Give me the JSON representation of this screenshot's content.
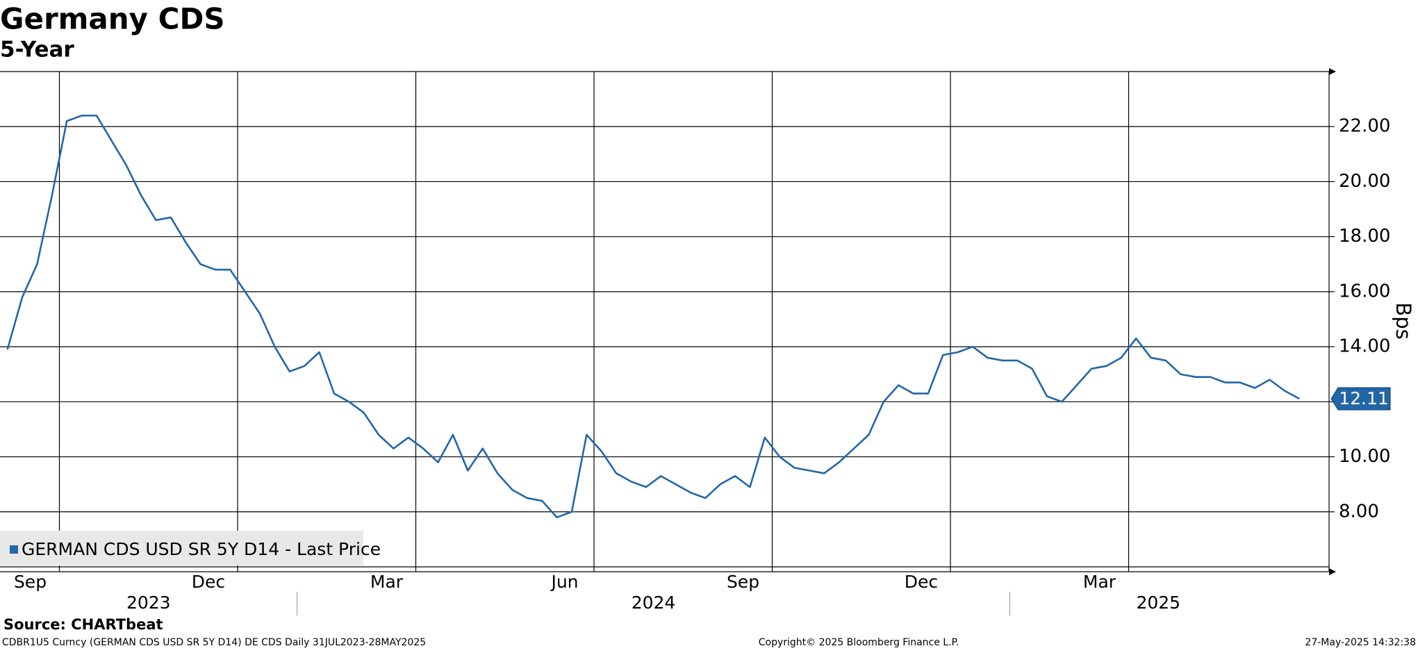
{
  "chart_data": {
    "type": "line",
    "title": "Germany CDS",
    "subtitle": "5-Year",
    "y_label": "Bps",
    "source": "Source: CHARTbeat",
    "footer_left": "CDBR1U5 Curncy (GERMAN CDS USD SR 5Y D14) DE CDS  Daily 31JUL2023-28MAY2025",
    "footer_center": "Copyright© 2025 Bloomberg Finance L.P.",
    "footer_right": "27-May-2025 14:32:38",
    "x": [
      "2023-08",
      "2023-08",
      "2023-08",
      "2023-08",
      "2023-09",
      "2023-09",
      "2023-09",
      "2023-09",
      "2023-10",
      "2023-10",
      "2023-10",
      "2023-10",
      "2023-11",
      "2023-11",
      "2023-11",
      "2023-11",
      "2023-12",
      "2023-12",
      "2023-12",
      "2023-12",
      "2024-01",
      "2024-01",
      "2024-01",
      "2024-01",
      "2024-02",
      "2024-02",
      "2024-02",
      "2024-02",
      "2024-03",
      "2024-03",
      "2024-03",
      "2024-03",
      "2024-04",
      "2024-04",
      "2024-04",
      "2024-04",
      "2024-05",
      "2024-05",
      "2024-05",
      "2024-05",
      "2024-06",
      "2024-06",
      "2024-06",
      "2024-06",
      "2024-07",
      "2024-07",
      "2024-07",
      "2024-07",
      "2024-08",
      "2024-08",
      "2024-08",
      "2024-08",
      "2024-09",
      "2024-09",
      "2024-09",
      "2024-09",
      "2024-10",
      "2024-10",
      "2024-10",
      "2024-10",
      "2024-11",
      "2024-11",
      "2024-11",
      "2024-11",
      "2024-12",
      "2024-12",
      "2024-12",
      "2024-12",
      "2025-01",
      "2025-01",
      "2025-01",
      "2025-01",
      "2025-02",
      "2025-02",
      "2025-02",
      "2025-02",
      "2025-03",
      "2025-03",
      "2025-03",
      "2025-03",
      "2025-04",
      "2025-04",
      "2025-04",
      "2025-04",
      "2025-05",
      "2025-05",
      "2025-05",
      "2025-05"
    ],
    "series": [
      {
        "name": "GERMAN CDS USD SR 5Y D14 - Last Price",
        "color": "#2266a8",
        "values": [
          13.9,
          15.8,
          17.0,
          19.5,
          22.2,
          22.4,
          22.4,
          21.5,
          20.6,
          19.5,
          18.6,
          18.7,
          17.8,
          17.0,
          16.8,
          16.8,
          16.0,
          15.2,
          14.0,
          13.1,
          13.3,
          13.8,
          12.3,
          12.0,
          11.6,
          10.8,
          10.3,
          10.7,
          10.3,
          9.8,
          10.8,
          9.5,
          10.3,
          9.4,
          8.8,
          8.5,
          8.4,
          7.8,
          8.0,
          10.8,
          10.2,
          9.4,
          9.1,
          8.9,
          9.3,
          9.0,
          8.7,
          8.5,
          9.0,
          9.3,
          8.9,
          10.7,
          10.0,
          9.6,
          9.5,
          9.4,
          9.8,
          10.3,
          10.8,
          12.0,
          12.6,
          12.3,
          12.3,
          13.7,
          13.8,
          14.0,
          13.6,
          13.5,
          13.5,
          13.2,
          12.2,
          12.0,
          12.6,
          13.2,
          13.3,
          13.6,
          14.3,
          13.6,
          13.5,
          13.0,
          12.9,
          12.9,
          12.7,
          12.7,
          12.5,
          12.8,
          12.4,
          12.11
        ]
      }
    ],
    "ylim": [
      6,
      24
    ],
    "yticks": [
      {
        "value": 8,
        "label": "8.00"
      },
      {
        "value": 10,
        "label": "10.00"
      },
      {
        "value": 12,
        "label": "12.00"
      },
      {
        "value": 14,
        "label": "14.00"
      },
      {
        "value": 16,
        "label": "16.00"
      },
      {
        "value": 18,
        "label": "18.00"
      },
      {
        "value": 20,
        "label": "20.00"
      },
      {
        "value": 22,
        "label": "22.00"
      }
    ],
    "xticks": [
      {
        "value": "2023-09",
        "label": "Sep"
      },
      {
        "value": "2023-12",
        "label": "Dec"
      },
      {
        "value": "2024-03",
        "label": "Mar"
      },
      {
        "value": "2024-06",
        "label": "Jun"
      },
      {
        "value": "2024-09",
        "label": "Sep"
      },
      {
        "value": "2024-12",
        "label": "Dec"
      },
      {
        "value": "2025-03",
        "label": "Mar"
      }
    ],
    "year_labels": [
      "2023",
      "2024",
      "2025"
    ],
    "grid": true,
    "legend": "lower left"
  }
}
